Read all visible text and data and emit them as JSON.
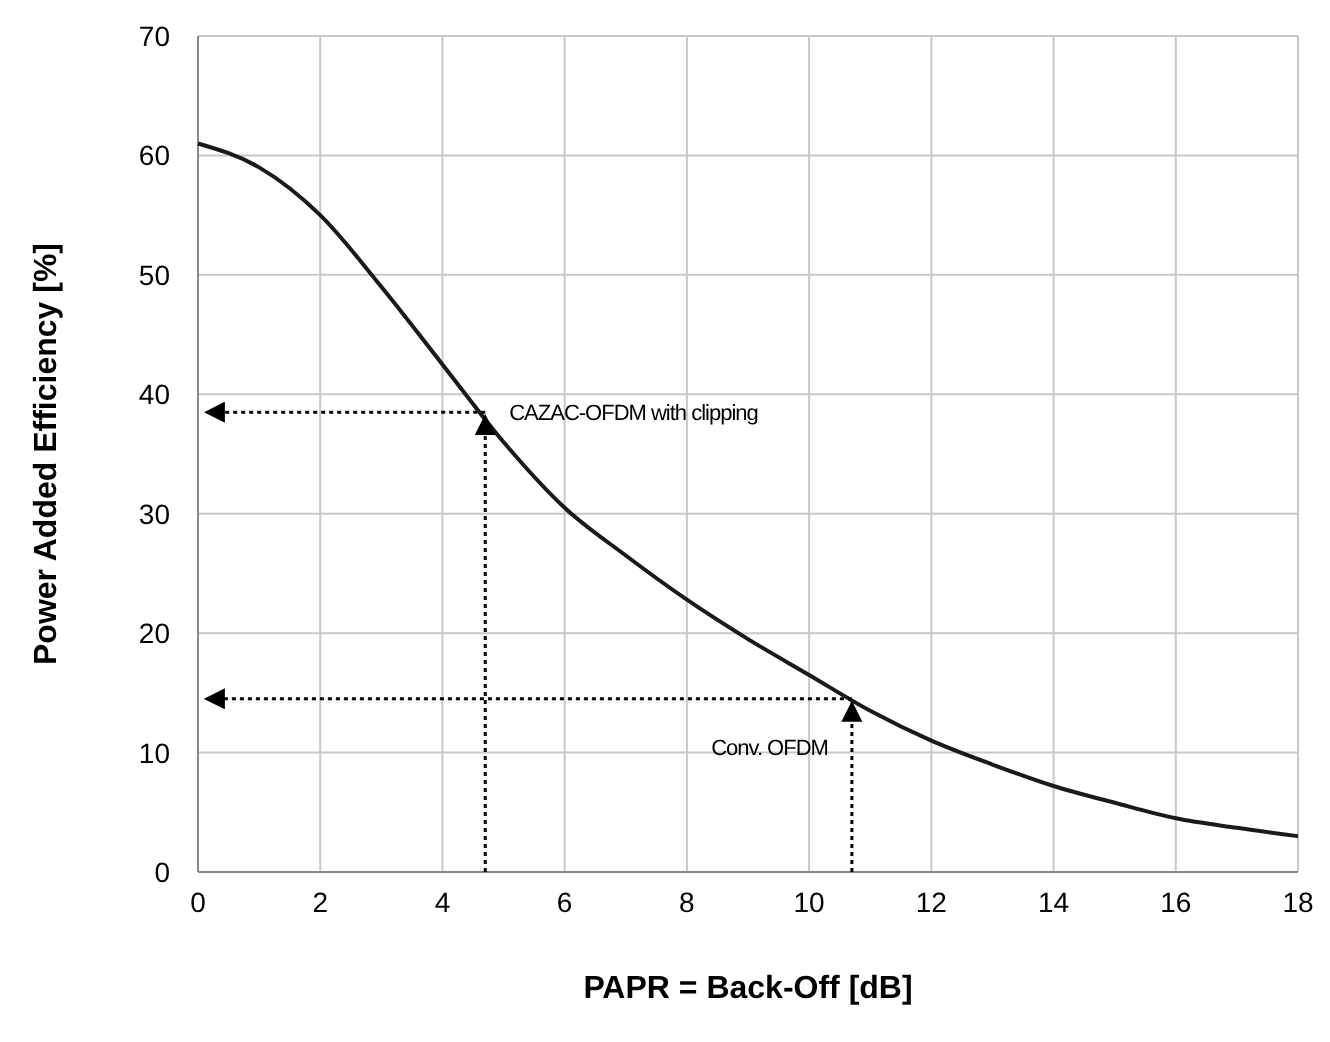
{
  "chart_data": {
    "type": "line",
    "xlabel": "PAPR = Back-Off   [dB]",
    "ylabel": "Power Added Efficiency   [%]",
    "x": [
      0,
      1,
      2,
      3,
      4,
      5,
      6,
      7,
      8,
      9,
      10,
      11,
      12,
      13,
      14,
      15,
      16,
      17,
      18
    ],
    "series": [
      {
        "color": "#1a1a1a",
        "values": [
          61,
          59,
          55,
          49,
          42.5,
          36,
          30.5,
          26.5,
          22.8,
          19.5,
          16.5,
          13.5,
          11,
          9,
          7.2,
          5.8,
          4.5,
          3.7,
          3
        ]
      }
    ],
    "xlim": [
      0,
      18
    ],
    "xticks": [
      0,
      2,
      4,
      6,
      8,
      10,
      12,
      14,
      16,
      18
    ],
    "ylim": [
      0,
      70
    ],
    "yticks": [
      0,
      10,
      20,
      30,
      40,
      50,
      60,
      70
    ],
    "grid": true,
    "marker": "none",
    "line_style": "solid",
    "annotations": [
      {
        "text": "CAZAC-OFDM with clipping",
        "x": 4.7,
        "y": 38.5
      },
      {
        "text": "Conv. OFDM",
        "x": 10.7,
        "y": 14.5
      }
    ]
  }
}
